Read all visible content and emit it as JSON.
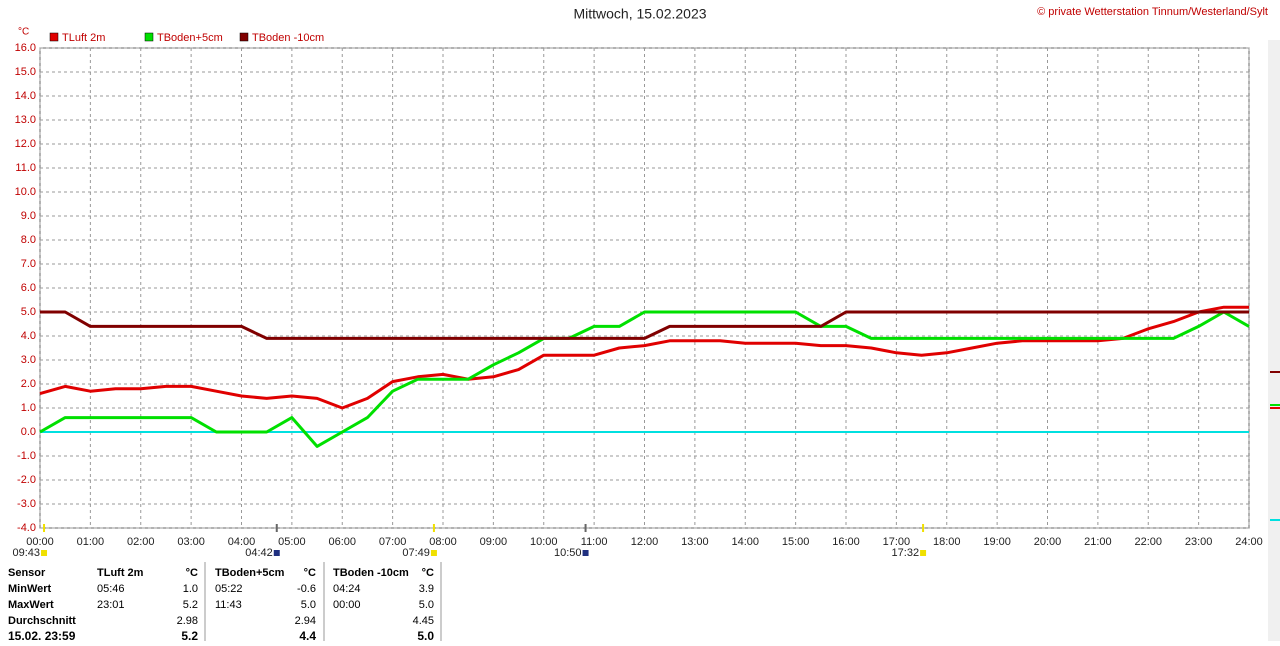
{
  "chart_data": {
    "type": "line",
    "title": "Mittwoch, 15.02.2023",
    "credit": "© private Wetterstation Tinnum/Westerland/Sylt",
    "y_unit": "°C",
    "x": [
      0,
      0.5,
      1,
      1.5,
      2,
      2.5,
      3,
      3.5,
      4,
      4.5,
      5,
      5.5,
      6,
      6.5,
      7,
      7.5,
      8,
      8.5,
      9,
      9.5,
      10,
      10.5,
      11,
      11.5,
      12,
      12.5,
      13,
      13.5,
      14,
      14.5,
      15,
      15.5,
      16,
      16.5,
      17,
      17.5,
      18,
      18.5,
      19,
      19.5,
      20,
      20.5,
      21,
      21.5,
      22,
      22.5,
      23,
      23.5,
      24
    ],
    "series": [
      {
        "name": "TLuft 2m",
        "color": "#e00000",
        "values": [
          1.6,
          1.9,
          1.7,
          1.8,
          1.8,
          1.9,
          1.9,
          1.7,
          1.5,
          1.4,
          1.5,
          1.4,
          1.0,
          1.4,
          2.1,
          2.3,
          2.4,
          2.2,
          2.3,
          2.6,
          3.2,
          3.2,
          3.2,
          3.5,
          3.6,
          3.8,
          3.8,
          3.8,
          3.7,
          3.7,
          3.7,
          3.6,
          3.6,
          3.5,
          3.3,
          3.2,
          3.3,
          3.5,
          3.7,
          3.8,
          3.8,
          3.8,
          3.8,
          3.9,
          4.3,
          4.6,
          5.0,
          5.2,
          5.2
        ]
      },
      {
        "name": "TBoden+5cm",
        "color": "#00e000",
        "values": [
          0.0,
          0.6,
          0.6,
          0.6,
          0.6,
          0.6,
          0.6,
          0.0,
          0.0,
          0.0,
          0.6,
          -0.6,
          0.0,
          0.6,
          1.7,
          2.2,
          2.2,
          2.2,
          2.8,
          3.3,
          3.9,
          3.9,
          4.4,
          4.4,
          5.0,
          5.0,
          5.0,
          5.0,
          5.0,
          5.0,
          5.0,
          4.4,
          4.4,
          3.9,
          3.9,
          3.9,
          3.9,
          3.9,
          3.9,
          3.9,
          3.9,
          3.9,
          3.9,
          3.9,
          3.9,
          3.9,
          4.4,
          5.0,
          4.4
        ]
      },
      {
        "name": "TBoden -10cm",
        "color": "#800000",
        "values": [
          5.0,
          5.0,
          4.4,
          4.4,
          4.4,
          4.4,
          4.4,
          4.4,
          4.4,
          3.9,
          3.9,
          3.9,
          3.9,
          3.9,
          3.9,
          3.9,
          3.9,
          3.9,
          3.9,
          3.9,
          3.9,
          3.9,
          3.9,
          3.9,
          3.9,
          4.4,
          4.4,
          4.4,
          4.4,
          4.4,
          4.4,
          4.4,
          5.0,
          5.0,
          5.0,
          5.0,
          5.0,
          5.0,
          5.0,
          5.0,
          5.0,
          5.0,
          5.0,
          5.0,
          5.0,
          5.0,
          5.0,
          5.0,
          5.0
        ]
      }
    ],
    "reference_line": {
      "value": 0,
      "color": "#00e0e0"
    },
    "xlim": [
      0,
      24
    ],
    "xticks": [
      {
        "value": 0,
        "label": "00:00"
      },
      {
        "value": 1,
        "label": "01:00"
      },
      {
        "value": 2,
        "label": "02:00"
      },
      {
        "value": 3,
        "label": "03:00"
      },
      {
        "value": 4,
        "label": "04:00"
      },
      {
        "value": 5,
        "label": "05:00"
      },
      {
        "value": 6,
        "label": "06:00"
      },
      {
        "value": 7,
        "label": "07:00"
      },
      {
        "value": 8,
        "label": "08:00"
      },
      {
        "value": 9,
        "label": "09:00"
      },
      {
        "value": 10,
        "label": "10:00"
      },
      {
        "value": 11,
        "label": "11:00"
      },
      {
        "value": 12,
        "label": "12:00"
      },
      {
        "value": 13,
        "label": "13:00"
      },
      {
        "value": 14,
        "label": "14:00"
      },
      {
        "value": 15,
        "label": "15:00"
      },
      {
        "value": 16,
        "label": "16:00"
      },
      {
        "value": 17,
        "label": "17:00"
      },
      {
        "value": 18,
        "label": "18:00"
      },
      {
        "value": 19,
        "label": "19:00"
      },
      {
        "value": 20,
        "label": "20:00"
      },
      {
        "value": 21,
        "label": "21:00"
      },
      {
        "value": 22,
        "label": "22:00"
      },
      {
        "value": 23,
        "label": "23:00"
      },
      {
        "value": 24,
        "label": "24:00"
      }
    ],
    "ylim": [
      -4,
      16
    ],
    "yticks": [
      {
        "value": 16,
        "label": "16.0"
      },
      {
        "value": 15,
        "label": "15.0"
      },
      {
        "value": 14,
        "label": "14.0"
      },
      {
        "value": 13,
        "label": "13.0"
      },
      {
        "value": 12,
        "label": "12.0"
      },
      {
        "value": 11,
        "label": "11.0"
      },
      {
        "value": 10,
        "label": "10.0"
      },
      {
        "value": 9,
        "label": "9.0"
      },
      {
        "value": 8,
        "label": "8.0"
      },
      {
        "value": 7,
        "label": "7.0"
      },
      {
        "value": 6,
        "label": "6.0"
      },
      {
        "value": 5,
        "label": "5.0"
      },
      {
        "value": 4,
        "label": "4.0"
      },
      {
        "value": 3,
        "label": "3.0"
      },
      {
        "value": 2,
        "label": "2.0"
      },
      {
        "value": 1,
        "label": "1.0"
      },
      {
        "value": 0,
        "label": "0.0"
      },
      {
        "value": -1,
        "label": "-1.0"
      },
      {
        "value": -2,
        "label": "-2.0"
      },
      {
        "value": -3,
        "label": "-3.0"
      },
      {
        "value": -4,
        "label": "-4.0"
      }
    ],
    "grid": true,
    "annotations": [
      {
        "label": "09:43",
        "x": 0.08,
        "color": "#f0e000"
      },
      {
        "label": "04:42",
        "x": 4.7,
        "color": "#203080"
      },
      {
        "label": "07:49",
        "x": 7.82,
        "color": "#f0e000"
      },
      {
        "label": "10:50",
        "x": 10.83,
        "color": "#203080"
      },
      {
        "label": "17:32",
        "x": 17.53,
        "color": "#f0e000"
      }
    ]
  },
  "table": {
    "rows": [
      [
        "Sensor",
        "TLuft 2m",
        "°C",
        "TBoden+5cm",
        "°C",
        "TBoden -10cm",
        "°C"
      ],
      [
        "MinWert",
        "05:46",
        "1.0",
        "05:22",
        "-0.6",
        "04:24",
        "3.9"
      ],
      [
        "MaxWert",
        "23:01",
        "5.2",
        "11:43",
        "5.0",
        "00:00",
        "5.0"
      ],
      [
        "Durchschnitt",
        null,
        "2.98",
        null,
        "2.94",
        null,
        "4.45"
      ],
      [
        "15.02. 23:59",
        null,
        "5.2",
        null,
        "4.4",
        null,
        "5.0"
      ]
    ]
  }
}
